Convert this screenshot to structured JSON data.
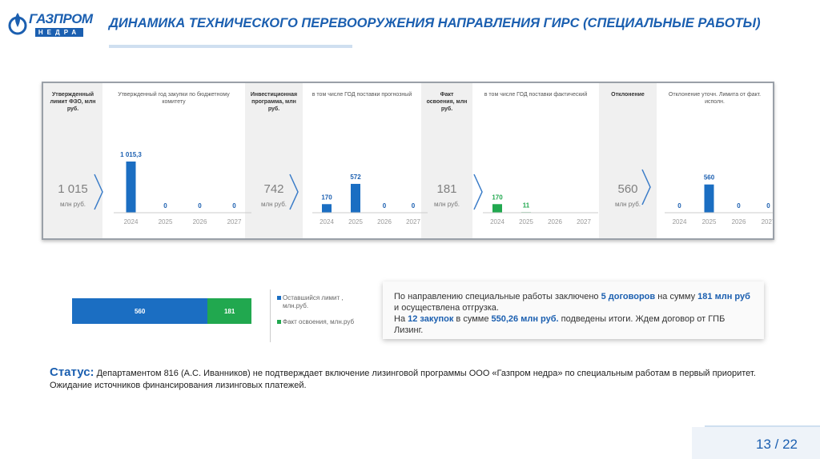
{
  "logo": {
    "brand": "ГАЗПРОМ",
    "sub": "НЕДРА"
  },
  "title": "ДИНАМИКА ТЕХНИЧЕСКОГО ПЕРЕВООРУЖЕНИЯ НАПРАВЛЕНИЯ ГИРС (СПЕЦИАЛЬНЫЕ РАБОТЫ)",
  "colors": {
    "blue": "#1b6ec2",
    "green": "#21a84f",
    "title": "#1b5fb0"
  },
  "panel": {
    "summaries": [
      {
        "header": "Утвержденный лимит ФЗО, млн руб.",
        "value": "1 015",
        "unit": "млн руб."
      },
      {
        "header": "Инвестиционная программа, млн руб.",
        "value": "742",
        "unit": "млн руб."
      },
      {
        "header": "Факт освоения, млн руб.",
        "value": "181",
        "unit": "млн руб."
      },
      {
        "header": "Отклонение",
        "value": "560",
        "unit": "млн руб."
      }
    ]
  },
  "chart_data": [
    {
      "type": "bar",
      "title": "Утвержденный год закупки по бюджетному комитету",
      "categories": [
        "2024",
        "2025",
        "2026",
        "2027"
      ],
      "values": [
        1015.3,
        0,
        0,
        0
      ],
      "labels": [
        "1 015,3",
        "0",
        "0",
        "0"
      ],
      "color": "#1b6ec2"
    },
    {
      "type": "bar",
      "title": "в том числе ГОД поставки прогнозный",
      "categories": [
        "2024",
        "2025",
        "2026",
        "2027"
      ],
      "values": [
        170,
        572,
        0,
        0
      ],
      "labels": [
        "170",
        "572",
        "0",
        "0"
      ],
      "color": "#1b6ec2"
    },
    {
      "type": "bar",
      "title": "в том числе ГОД поставки фактический",
      "categories": [
        "2024",
        "2025",
        "2026",
        "2027"
      ],
      "values": [
        170,
        11,
        0,
        0
      ],
      "labels": [
        "170",
        "11",
        "",
        ""
      ],
      "color": "#21a84f"
    },
    {
      "type": "bar",
      "title": "Отклонение уточн. Лимита от факт. исполн.",
      "categories": [
        "2024",
        "2025",
        "2026",
        "2027"
      ],
      "values": [
        0,
        560,
        0,
        0
      ],
      "labels": [
        "0",
        "560",
        "0",
        "0"
      ],
      "color": "#1b6ec2"
    },
    {
      "type": "bar",
      "orientation": "horizontal",
      "stacked": true,
      "series": [
        {
          "name": "Оставшийся лимит , млн.руб.",
          "values": [
            560
          ],
          "label": "560",
          "color": "#1b6ec2"
        },
        {
          "name": "Факт освоения, млн.руб",
          "values": [
            181
          ],
          "label": "181",
          "color": "#21a84f"
        }
      ]
    }
  ],
  "info": {
    "p1_a": "По направлению специальные работы заключено ",
    "p1_b": "5 договоров",
    "p1_c": " на сумму ",
    "p1_d": "181 млн руб",
    "p1_e": " и осуществлена отгрузка.",
    "p2_a": "На ",
    "p2_b": "12 закупок",
    "p2_c": " в сумме ",
    "p2_d": "550,26 млн руб.",
    "p2_e": " подведены итоги. Ждем договор от ГПБ Лизинг."
  },
  "status": {
    "label": "Статус:",
    "text": "Департаментом 816 (А.С. Иванников) не подтверждает включение лизинговой программы ООО «Газпром недра» по специальным работам в первый приоритет. Ожидание источников финансирования лизинговых платежей."
  },
  "page": "13 / 22"
}
